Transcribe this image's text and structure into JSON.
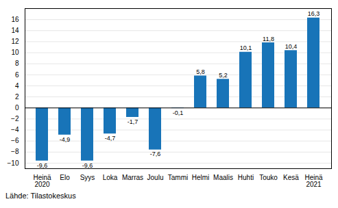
{
  "chart_data": {
    "type": "bar",
    "caption": "Lähde: Tilastokeskus",
    "categories": [
      "Heinä\n2020",
      "Elo",
      "Syys",
      "Loka",
      "Marras",
      "Joulu",
      "Tammi",
      "Helmi",
      "Maalis",
      "Huhti",
      "Touko",
      "Kesä",
      "Heinä\n2021"
    ],
    "values": [
      -9.6,
      -4.9,
      -9.6,
      -4.7,
      -1.7,
      -7.6,
      -0.1,
      5.8,
      5.2,
      10.1,
      11.8,
      10.4,
      16.3
    ],
    "value_labels": [
      "-9,6",
      "-4,9",
      "-9,6",
      "-4,7",
      "-1,7",
      "-7,6",
      "-0,1",
      "5,8",
      "5,2",
      "10,1",
      "11,8",
      "10,4",
      "16,3"
    ],
    "data_labels": true,
    "color": "#1874b8",
    "ylim": [
      -11,
      18
    ],
    "yticks": [
      -10,
      -8,
      -6,
      -4,
      -2,
      0,
      2,
      4,
      6,
      8,
      10,
      12,
      14,
      16
    ],
    "grid": true
  }
}
